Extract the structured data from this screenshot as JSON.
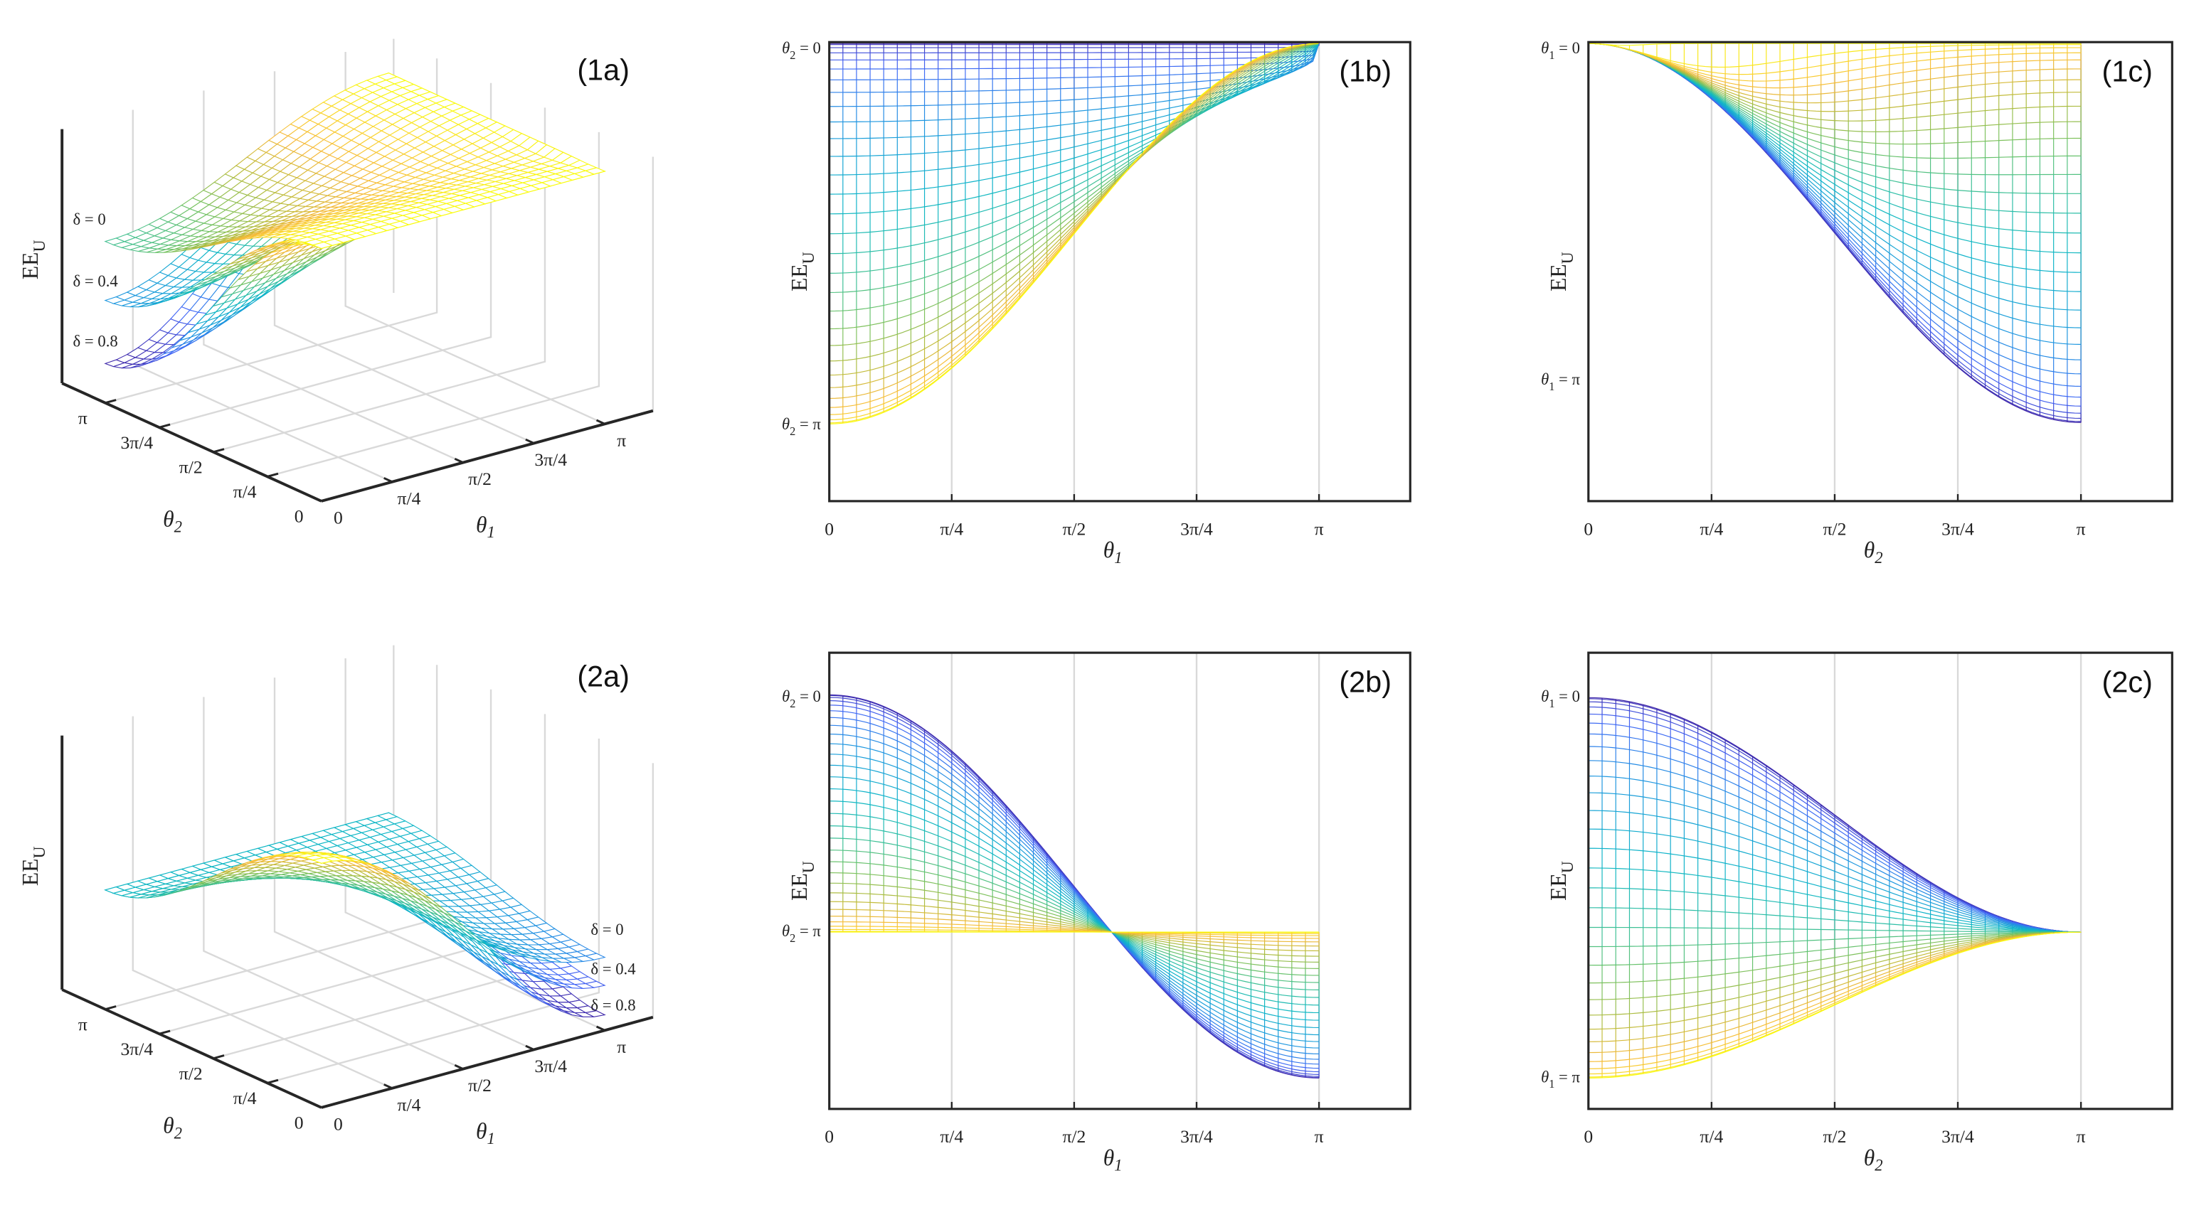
{
  "figure": {
    "panel_labels": [
      "(1a)",
      "(1b)",
      "(1c)",
      "(2a)",
      "(2b)",
      "(2c)"
    ],
    "ylabel": {
      "main": "EE",
      "sub": "U"
    },
    "theta1": {
      "sym": "θ",
      "sub": "1"
    },
    "theta2": {
      "sym": "θ",
      "sub": "2"
    },
    "ticks": [
      "0",
      "π/4",
      "π/2",
      "3π/4",
      "π"
    ],
    "delta_labels": [
      "δ = 0",
      "δ = 0.4",
      "δ = 0.8"
    ],
    "edge_labels": {
      "b_top": {
        "sym": "θ",
        "sub": "2",
        "rest": " = 0"
      },
      "b_bottom": {
        "sym": "θ",
        "sub": "2",
        "rest": " = π"
      },
      "c_top": {
        "sym": "θ",
        "sub": "1",
        "rest": " = 0"
      },
      "c_bottom": {
        "sym": "θ",
        "sub": "1",
        "rest": " = π"
      }
    },
    "colors": {
      "axis": "#262626",
      "grid": "#d9d9d9",
      "colormap": "parula",
      "colormap_low": "#3E26A8",
      "colormap_high": "#F9FB0E"
    }
  },
  "chart_data": [
    {
      "panel": "(1a)",
      "type": "surface",
      "xlabel": "θ1",
      "ylabel": "θ2",
      "zlabel": "EEU",
      "x_ticks": [
        "0",
        "π/4",
        "π/2",
        "3π/4",
        "π"
      ],
      "y_ticks": [
        "0",
        "π/4",
        "π/2",
        "3π/4",
        "π"
      ],
      "series": [
        {
          "name": "δ = 0"
        },
        {
          "name": "δ = 0.4"
        },
        {
          "name": "δ = 0.8"
        }
      ],
      "grid": true
    },
    {
      "panel": "(1b)",
      "type": "line",
      "xlabel": "θ1",
      "ylabel": "EEU",
      "x_ticks": [
        "0",
        "π/4",
        "π/2",
        "3π/4",
        "π"
      ],
      "curve_family": "θ2 from 0 to π",
      "y_annotations": [
        "θ2 = 0",
        "θ2 = π"
      ],
      "grid": true
    },
    {
      "panel": "(1c)",
      "type": "line",
      "xlabel": "θ2",
      "ylabel": "EEU",
      "x_ticks": [
        "0",
        "π/4",
        "π/2",
        "3π/4",
        "π"
      ],
      "curve_family": "θ1 from 0 to π",
      "y_annotations": [
        "θ1 = 0",
        "θ1 = π"
      ],
      "grid": true
    },
    {
      "panel": "(2a)",
      "type": "surface",
      "xlabel": "θ1",
      "ylabel": "θ2",
      "zlabel": "EEU",
      "x_ticks": [
        "0",
        "π/4",
        "π/2",
        "3π/4",
        "π"
      ],
      "y_ticks": [
        "0",
        "π/4",
        "π/2",
        "3π/4",
        "π"
      ],
      "series": [
        {
          "name": "δ = 0"
        },
        {
          "name": "δ = 0.4"
        },
        {
          "name": "δ = 0.8"
        }
      ],
      "grid": true
    },
    {
      "panel": "(2b)",
      "type": "line",
      "xlabel": "θ1",
      "ylabel": "EEU",
      "x_ticks": [
        "0",
        "π/4",
        "π/2",
        "3π/4",
        "π"
      ],
      "curve_family": "θ2 from 0 to π",
      "y_annotations": [
        "θ2 = 0",
        "θ2 = π"
      ],
      "grid": true
    },
    {
      "panel": "(2c)",
      "type": "line",
      "xlabel": "θ2",
      "ylabel": "EEU",
      "x_ticks": [
        "0",
        "π/4",
        "π/2",
        "3π/4",
        "π"
      ],
      "curve_family": "θ1 from 0 to π",
      "y_annotations": [
        "θ1 = 0",
        "θ1 = π"
      ],
      "grid": true
    }
  ]
}
